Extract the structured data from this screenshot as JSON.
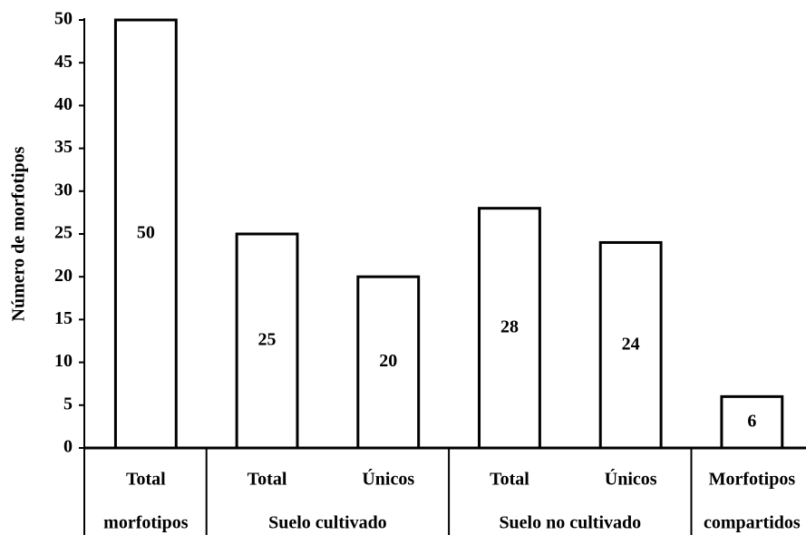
{
  "chart_data": {
    "type": "bar",
    "y_axis_label": "Número de morfotipos",
    "categories": [
      "Total",
      "Total",
      "Únicos",
      "Total",
      "Únicos",
      "Morfotipos"
    ],
    "groups": [
      {
        "name": "morfotipos",
        "size": 1
      },
      {
        "name": "Suelo cultivado",
        "size": 2
      },
      {
        "name": "Suelo no cultivado",
        "size": 2
      },
      {
        "name": "compartidos",
        "size": 1
      }
    ],
    "values": [
      50,
      25,
      20,
      28,
      24,
      6
    ],
    "color": "#ffffff",
    "edge_color": "#000000",
    "ylim": [
      0,
      50
    ],
    "yticks": [
      0,
      5,
      10,
      15,
      20,
      25,
      30,
      35,
      40,
      45,
      50
    ],
    "grid": false
  }
}
